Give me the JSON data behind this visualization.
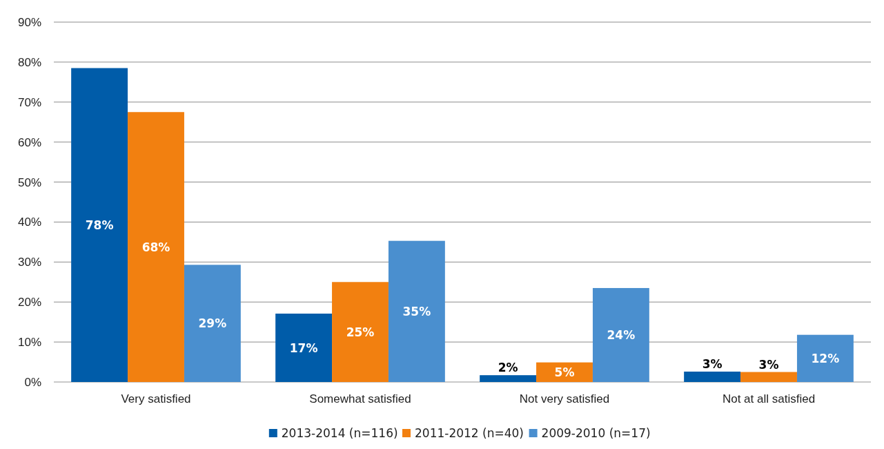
{
  "chart_data": {
    "type": "bar",
    "categories": [
      "Very satisfied",
      "Somewhat satisfied",
      "Not very satisfied",
      "Not at all satisfied"
    ],
    "series": [
      {
        "name": "2013-2014 (n=116)",
        "color": "#005ca9",
        "values": [
          78.5,
          17.1,
          1.7,
          2.6
        ],
        "value_labels": [
          "78%",
          "17%",
          "2%",
          "3%"
        ]
      },
      {
        "name": "2011-2012 (n=40)",
        "color": "#f28010",
        "values": [
          67.5,
          25,
          4.9,
          2.5
        ],
        "value_labels": [
          "68%",
          "25%",
          "5%",
          "3%"
        ]
      },
      {
        "name": "2009-2010 (n=17)",
        "color": "#4a8fcf",
        "values": [
          29.3,
          35.3,
          23.5,
          11.8
        ],
        "value_labels": [
          "29%",
          "35%",
          "24%",
          "12%"
        ]
      }
    ],
    "ylim": [
      0,
      90
    ],
    "yticks": [
      {
        "value": 0,
        "label": "0%"
      },
      {
        "value": 10,
        "label": "10%"
      },
      {
        "value": 20,
        "label": "20%"
      },
      {
        "value": 30,
        "label": "30%"
      },
      {
        "value": 40,
        "label": "40%"
      },
      {
        "value": 50,
        "label": "50%"
      },
      {
        "value": 60,
        "label": "60%"
      },
      {
        "value": 70,
        "label": "70%"
      },
      {
        "value": 80,
        "label": "80%"
      },
      {
        "value": 90,
        "label": "90%"
      }
    ],
    "grid": "y",
    "legend": "bottom"
  }
}
